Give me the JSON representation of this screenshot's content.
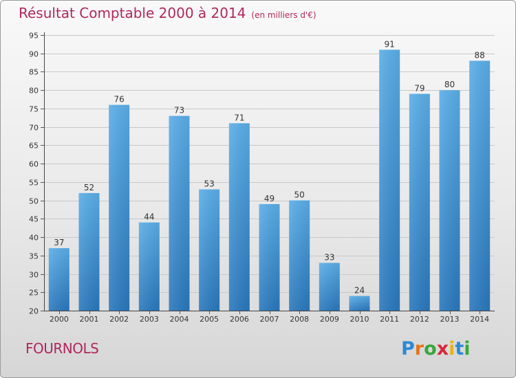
{
  "header": {
    "title": "Résultat Comptable 2000 à 2014",
    "subtitle": "(en milliers d'€)"
  },
  "footer": {
    "commune": "FOURNOLS",
    "brand": "Proxiti"
  },
  "chart_data": {
    "type": "bar",
    "title": "Résultat Comptable 2000 à 2014",
    "subtitle": "(en milliers d'€)",
    "xlabel": "",
    "ylabel": "",
    "categories": [
      "2000",
      "2001",
      "2002",
      "2003",
      "2004",
      "2005",
      "2006",
      "2007",
      "2008",
      "2009",
      "2010",
      "2011",
      "2012",
      "2013",
      "2014"
    ],
    "values": [
      37,
      52,
      76,
      44,
      73,
      53,
      71,
      49,
      50,
      33,
      24,
      91,
      79,
      80,
      88
    ],
    "ylim": [
      20,
      95
    ],
    "yticks": [
      20,
      25,
      30,
      35,
      40,
      45,
      50,
      55,
      60,
      65,
      70,
      75,
      80,
      85,
      90,
      95
    ],
    "grid": true,
    "bar_color": "#3a8fd4"
  }
}
